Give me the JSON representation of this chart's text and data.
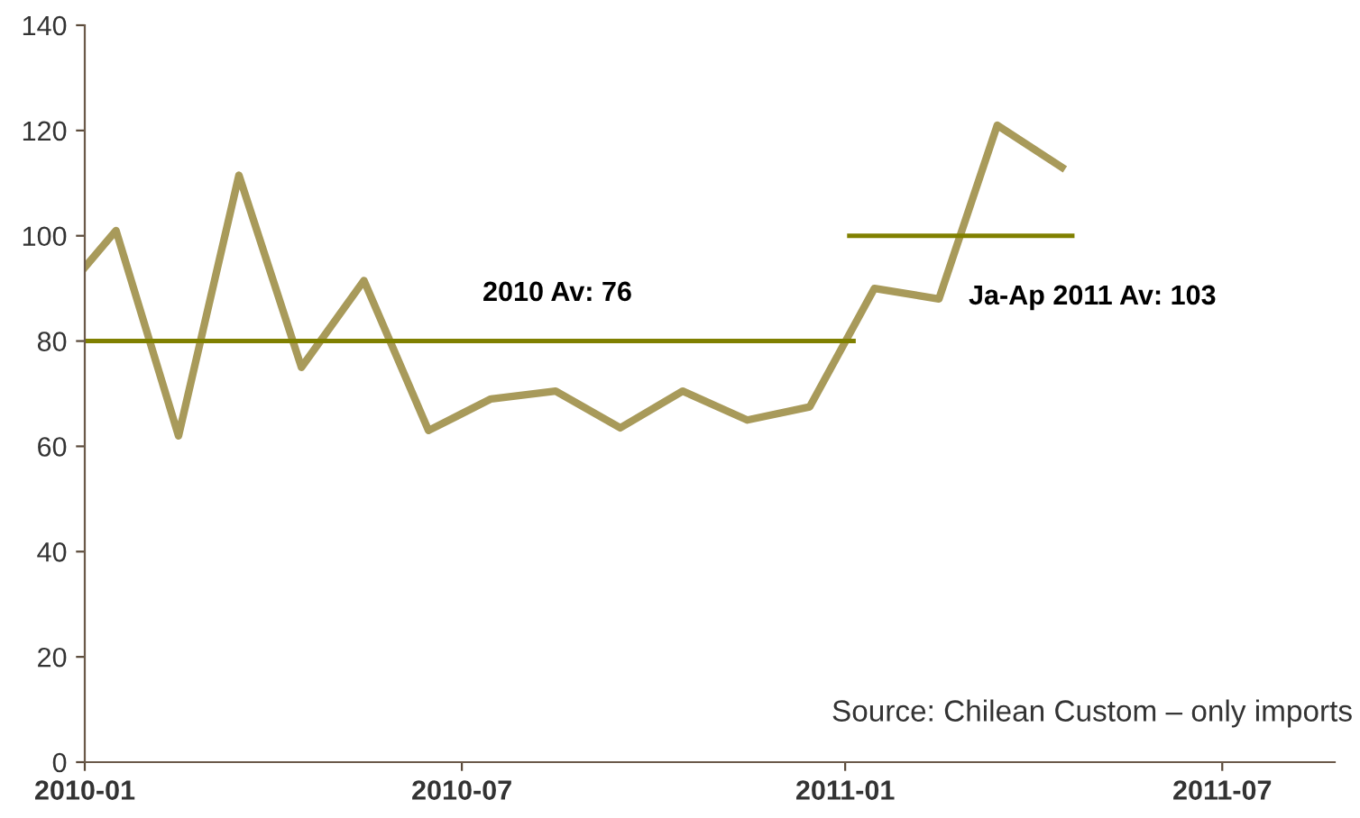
{
  "chart_data": {
    "type": "line",
    "xlim": [
      "2010-01-01",
      "2011-08-24"
    ],
    "xticks": [
      {
        "value": "2010-01-01",
        "label": "2010-01"
      },
      {
        "value": "2010-07-01",
        "label": "2010-07"
      },
      {
        "value": "2011-01-01",
        "label": "2011-01"
      },
      {
        "value": "2011-07-01",
        "label": "2011-07"
      }
    ],
    "ylim": [
      0,
      140
    ],
    "yticks": [
      0,
      20,
      40,
      60,
      80,
      100,
      120,
      140
    ],
    "grid": false,
    "legend": false,
    "marker": "none",
    "line_style": "solid",
    "series": [
      {
        "color": "#a89a5a",
        "x": [
          "2010-01-01",
          "2010-01-16",
          "2010-02-15",
          "2010-03-16",
          "2010-04-15",
          "2010-05-15",
          "2010-06-15",
          "2010-07-15",
          "2010-08-15",
          "2010-09-15",
          "2010-10-15",
          "2010-11-15",
          "2010-12-15",
          "2011-01-15",
          "2011-02-15",
          "2011-03-15",
          "2011-04-15"
        ],
        "values": [
          94,
          101,
          62,
          111.5,
          75,
          91.5,
          63,
          69,
          70.5,
          63.5,
          70.5,
          65,
          67.5,
          90,
          88,
          121,
          113
        ]
      },
      {
        "color": "#808000",
        "x": [
          "2010-01-01",
          "2011-01-05"
        ],
        "values": [
          80,
          80
        ]
      },
      {
        "color": "#808000",
        "x": [
          "2011-01-03",
          "2011-04-20"
        ],
        "values": [
          100,
          100
        ]
      }
    ],
    "annotations": [
      "2010 Av: 76",
      "Ja-Ap 2011 Av: 103",
      "Source: Chilean Custom – only imports"
    ]
  }
}
